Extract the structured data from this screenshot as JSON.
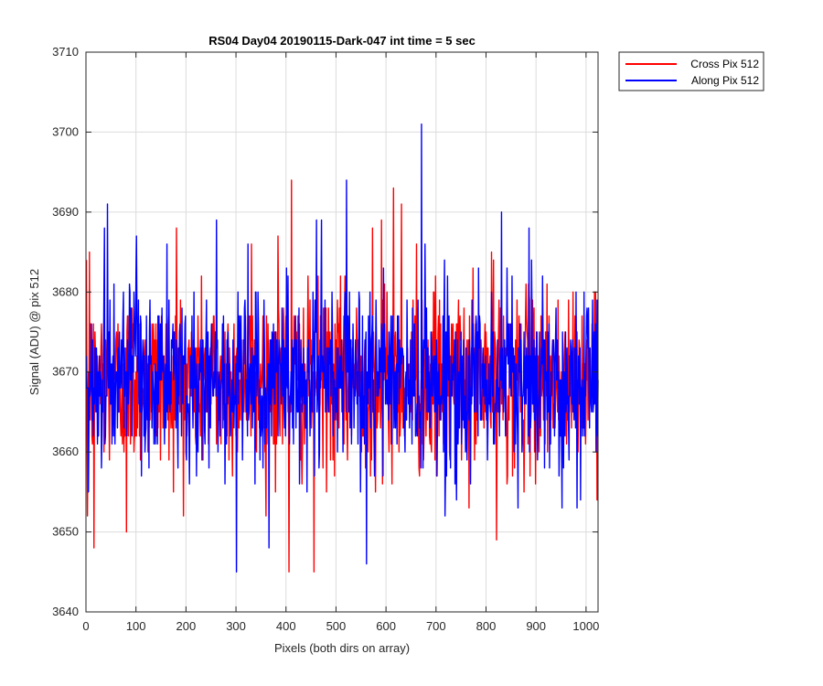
{
  "chart_data": {
    "type": "line",
    "title": "RS04 Day04 20190115-Dark-047 int time = 5 sec",
    "xlabel": "Pixels (both dirs on array)",
    "ylabel": "Signal (ADU) @ pix 512",
    "xlim": [
      0,
      1024
    ],
    "ylim": [
      3640,
      3710
    ],
    "xticks": [
      0,
      100,
      200,
      300,
      400,
      500,
      600,
      700,
      800,
      900,
      1000
    ],
    "yticks": [
      3640,
      3650,
      3660,
      3670,
      3680,
      3690,
      3700,
      3710
    ],
    "grid": true,
    "legend_position": "outside top-right",
    "n_points": 1024,
    "series": [
      {
        "name": "Cross Pix 512",
        "color": "#ff0000",
        "mean": 3669,
        "noise_sd": 5.5,
        "notable_points": [
          {
            "x": 2,
            "y": 3652
          },
          {
            "x": 6,
            "y": 3685
          },
          {
            "x": 15,
            "y": 3648
          },
          {
            "x": 80,
            "y": 3650
          },
          {
            "x": 180,
            "y": 3688
          },
          {
            "x": 330,
            "y": 3686
          },
          {
            "x": 383,
            "y": 3687
          },
          {
            "x": 405,
            "y": 3645
          },
          {
            "x": 410,
            "y": 3694
          },
          {
            "x": 455,
            "y": 3645
          },
          {
            "x": 572,
            "y": 3688
          },
          {
            "x": 590,
            "y": 3689
          },
          {
            "x": 592,
            "y": 3656
          },
          {
            "x": 614,
            "y": 3693
          },
          {
            "x": 630,
            "y": 3691
          },
          {
            "x": 660,
            "y": 3686
          },
          {
            "x": 700,
            "y": 3657
          },
          {
            "x": 810,
            "y": 3685
          },
          {
            "x": 820,
            "y": 3649
          },
          {
            "x": 960,
            "y": 3661
          },
          {
            "x": 1018,
            "y": 3680
          }
        ]
      },
      {
        "name": "Along Pix 512",
        "color": "#0000ff",
        "mean": 3669,
        "noise_sd": 5.5,
        "notable_points": [
          {
            "x": 4,
            "y": 3655
          },
          {
            "x": 36,
            "y": 3688
          },
          {
            "x": 42,
            "y": 3691
          },
          {
            "x": 55,
            "y": 3681
          },
          {
            "x": 100,
            "y": 3687
          },
          {
            "x": 260,
            "y": 3689
          },
          {
            "x": 300,
            "y": 3645
          },
          {
            "x": 365,
            "y": 3648
          },
          {
            "x": 400,
            "y": 3683
          },
          {
            "x": 460,
            "y": 3689
          },
          {
            "x": 470,
            "y": 3689
          },
          {
            "x": 520,
            "y": 3694
          },
          {
            "x": 560,
            "y": 3646
          },
          {
            "x": 670,
            "y": 3701
          },
          {
            "x": 740,
            "y": 3654
          },
          {
            "x": 830,
            "y": 3690
          },
          {
            "x": 885,
            "y": 3688
          },
          {
            "x": 1000,
            "y": 3677
          }
        ]
      }
    ]
  }
}
